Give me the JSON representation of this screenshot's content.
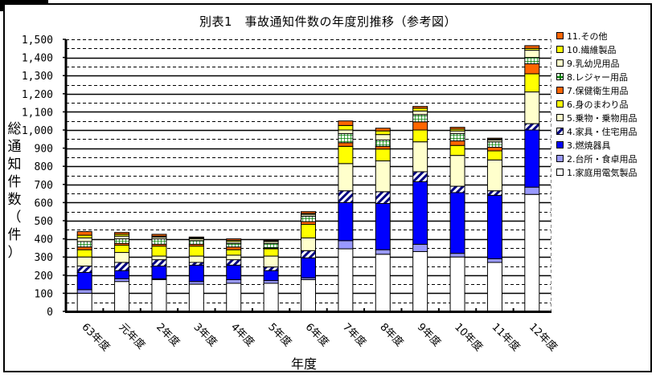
{
  "title": "別表1　事故通知件数の年度別推移（参考図）",
  "y_axis_label_chars": [
    "総",
    "通",
    "知",
    "件",
    "数",
    "（",
    "件",
    "）"
  ],
  "x_axis_label": "年度",
  "legend": [
    {
      "label": "11.その他",
      "color": "#ff6600",
      "pattern": "solid"
    },
    {
      "label": "10.繊維製品",
      "color": "#ffff00",
      "pattern": "solid"
    },
    {
      "label": "9.乳幼児用品",
      "color": "#ffffcc",
      "pattern": "solid"
    },
    {
      "label": "8.レジャー用品",
      "color": "#ffffff",
      "pattern": "grid"
    },
    {
      "label": "7.保健衛生用品",
      "color": "#ff6600",
      "pattern": "solid"
    },
    {
      "label": "6.身のまわり品",
      "color": "#ffff00",
      "pattern": "solid"
    },
    {
      "label": "5.乗物・乗物用品",
      "color": "#ffffcc",
      "pattern": "solid"
    },
    {
      "label": "4.家具・住宅用品",
      "color": "#000080",
      "pattern": "hatch"
    },
    {
      "label": "3.燃焼器具",
      "color": "#0000ff",
      "pattern": "solid"
    },
    {
      "label": "2.台所・食卓用品",
      "color": "#9999ff",
      "pattern": "solid"
    },
    {
      "label": "1.家庭用電気製品",
      "color": "#ffffff",
      "pattern": "solid"
    }
  ],
  "chart_data": {
    "type": "bar",
    "stacked": true,
    "title": "別表1　事故通知件数の年度別推移（参考図）",
    "xlabel": "年度",
    "ylabel": "総通知件数（件）",
    "ylim": [
      0,
      1500
    ],
    "yticks": [
      "0",
      "100",
      "200",
      "300",
      "400",
      "500",
      "600",
      "700",
      "800",
      "900",
      "1,000",
      "1,100",
      "1,200",
      "1,300",
      "1,400",
      "1,500"
    ],
    "grid": "horizontal solid every 100, dashed every 50",
    "legend_position": "right",
    "categories": [
      "63年度",
      "元年度",
      "2年度",
      "3年度",
      "4年度",
      "5年度",
      "6年度",
      "7年度",
      "8年度",
      "9年度",
      "10年度",
      "11年度",
      "12年度"
    ],
    "series": [
      {
        "name": "1.家庭用電気製品",
        "color": "#ffffff",
        "pattern": "solid",
        "values": [
          100,
          165,
          175,
          150,
          155,
          155,
          175,
          345,
          315,
          330,
          300,
          270,
          645
        ]
      },
      {
        "name": "2.台所・食卓用品",
        "color": "#9999ff",
        "pattern": "solid",
        "values": [
          20,
          15,
          5,
          15,
          20,
          15,
          10,
          45,
          25,
          40,
          20,
          20,
          40
        ]
      },
      {
        "name": "3.燃焼器具",
        "color": "#0000ff",
        "pattern": "solid",
        "values": [
          95,
          45,
          70,
          90,
          80,
          55,
          110,
          210,
          255,
          345,
          335,
          350,
          315
        ]
      },
      {
        "name": "4.家具・住宅用品",
        "color": "#000080",
        "pattern": "hatch",
        "values": [
          35,
          45,
          35,
          15,
          30,
          20,
          40,
          65,
          65,
          55,
          35,
          25,
          35
        ]
      },
      {
        "name": "5.乗物・乗物用品",
        "color": "#ffffcc",
        "pattern": "solid",
        "values": [
          50,
          55,
          20,
          35,
          25,
          60,
          70,
          150,
          170,
          165,
          170,
          170,
          175
        ]
      },
      {
        "name": "6.身のまわり品",
        "color": "#ffff00",
        "pattern": "solid",
        "values": [
          40,
          40,
          55,
          55,
          30,
          40,
          75,
          95,
          65,
          65,
          55,
          50,
          100
        ]
      },
      {
        "name": "7.保健衛生用品",
        "color": "#ff6600",
        "pattern": "solid",
        "values": [
          15,
          10,
          10,
          10,
          15,
          5,
          15,
          20,
          15,
          45,
          25,
          20,
          55
        ]
      },
      {
        "name": "8.レジャー用品",
        "color": "#ffffff",
        "pattern": "grid",
        "values": [
          30,
          25,
          30,
          20,
          20,
          25,
          30,
          50,
          35,
          40,
          40,
          30,
          35
        ]
      },
      {
        "name": "9.乳幼児用品",
        "color": "#ffffcc",
        "pattern": "solid",
        "values": [
          20,
          15,
          10,
          10,
          10,
          10,
          10,
          20,
          30,
          20,
          15,
          10,
          40
        ]
      },
      {
        "name": "10.繊維製品",
        "color": "#ffff00",
        "pattern": "solid",
        "values": [
          15,
          10,
          5,
          5,
          7,
          5,
          5,
          25,
          20,
          15,
          10,
          5,
          10
        ]
      },
      {
        "name": "11.その他",
        "color": "#ff6600",
        "pattern": "solid",
        "values": [
          20,
          10,
          10,
          5,
          8,
          5,
          10,
          25,
          15,
          10,
          10,
          5,
          15
        ]
      }
    ],
    "totals": [
      440,
      435,
      425,
      410,
      400,
      395,
      550,
      1050,
      1010,
      1130,
      1015,
      955,
      1465
    ]
  }
}
